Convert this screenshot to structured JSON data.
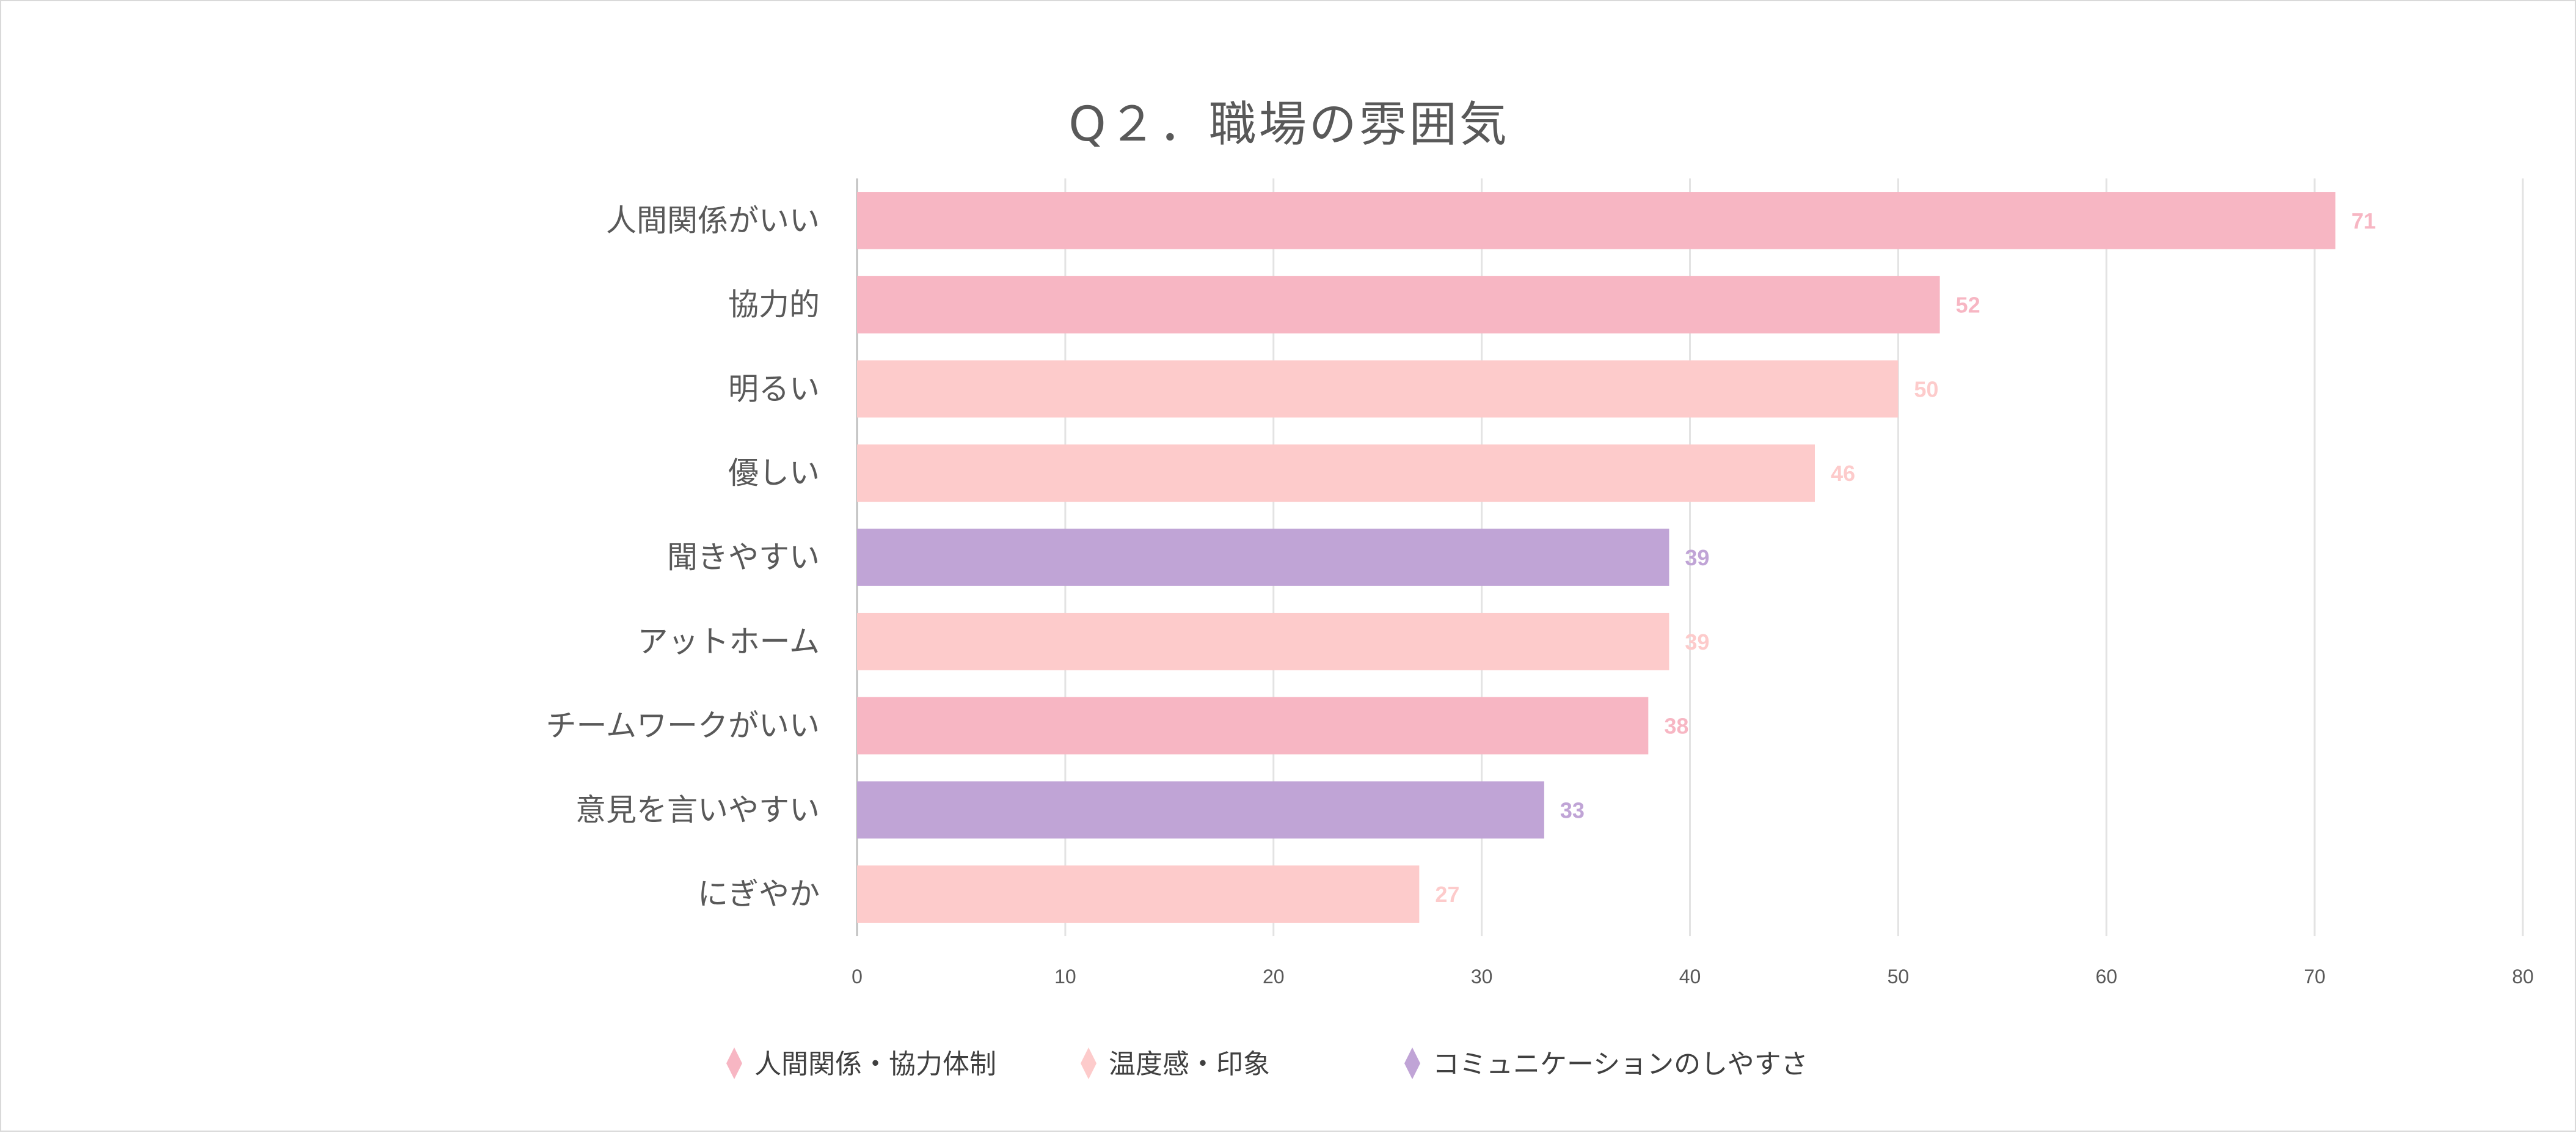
{
  "chart_data": {
    "type": "bar",
    "orientation": "horizontal",
    "title": "Q２．職場の雰囲気",
    "categories": [
      "人間関係がいい",
      "協力的",
      "明るい",
      "優しい",
      "聞きやすい",
      "アットホーム",
      "チームワークがいい",
      "意見を言いやすい",
      "にぎやか"
    ],
    "values": [
      71,
      52,
      50,
      46,
      39,
      39,
      38,
      33,
      27
    ],
    "groups": [
      0,
      0,
      1,
      1,
      2,
      1,
      0,
      2,
      1
    ],
    "legend": [
      {
        "name": "人間関係・協力体制",
        "color": "#F7B6C3"
      },
      {
        "name": "温度感・印象",
        "color": "#FDCBCB"
      },
      {
        "name": "コミュニケーションのしやすさ",
        "color": "#C0A4D6"
      }
    ],
    "legend_position": "bottom",
    "xlim": [
      0,
      80
    ],
    "xticks": [
      0,
      10,
      20,
      30,
      40,
      50,
      60,
      70,
      80
    ],
    "grid": true,
    "xlabel": "",
    "ylabel": ""
  }
}
